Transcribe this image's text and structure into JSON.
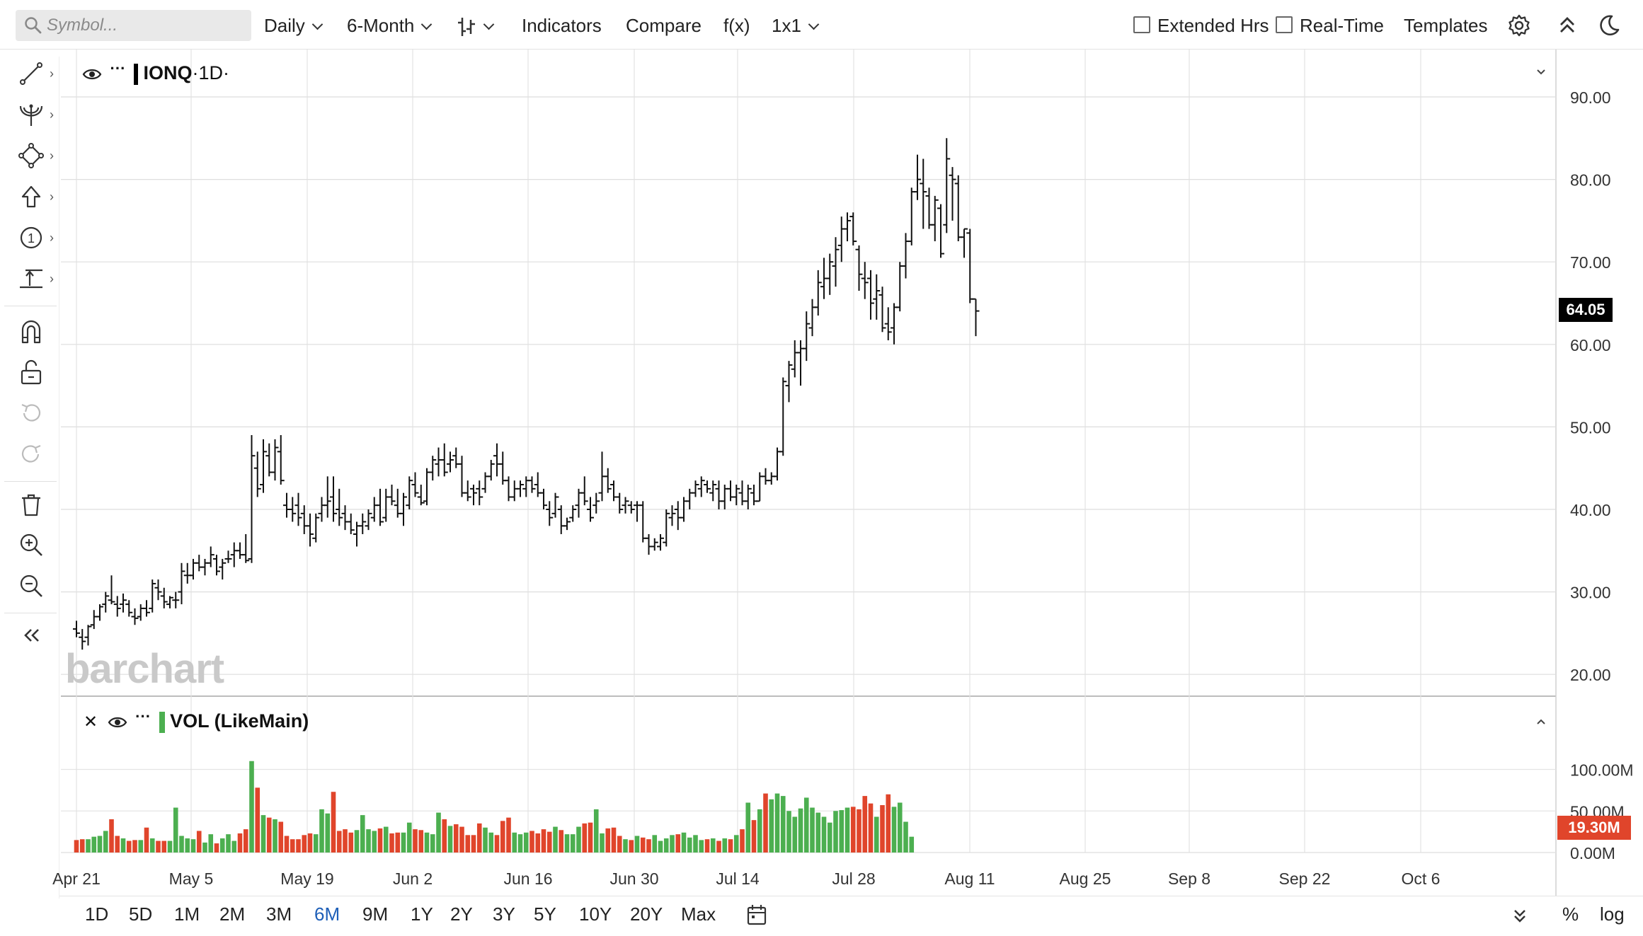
{
  "toolbar": {
    "search_placeholder": "Symbol...",
    "interval": "Daily",
    "range": "6-Month",
    "indicators": "Indicators",
    "compare": "Compare",
    "fx": "f(x)",
    "layout": "1x1",
    "extended_hrs": "Extended Hrs",
    "real_time": "Real-Time",
    "templates": "Templates"
  },
  "main_pane": {
    "symbol": "IONQ",
    "period": "·1D·",
    "last_price": "64.05"
  },
  "volume_pane": {
    "label": "VOL (LikeMain)",
    "last_volume": "19.30M"
  },
  "watermark": "barchart",
  "range_buttons": [
    "1D",
    "5D",
    "1M",
    "2M",
    "3M",
    "6M",
    "9M",
    "1Y",
    "2Y",
    "3Y",
    "5Y",
    "10Y",
    "20Y",
    "Max"
  ],
  "active_range": "6M",
  "bottom_right": {
    "percent": "%",
    "log": "log"
  },
  "colors": {
    "up_volume": "#4caf50",
    "down_volume": "#e0452b",
    "price_flag": "#000000",
    "volume_flag": "#e0452b",
    "active_range": "#1e5fb8"
  },
  "chart_data": {
    "type": "ohlc-bar",
    "price_axis": {
      "ticks": [
        "90.00",
        "80.00",
        "70.00",
        "60.00",
        "50.00",
        "40.00",
        "30.00",
        "20.00"
      ],
      "range": [
        17.5,
        94
      ]
    },
    "volume_axis": {
      "ticks": [
        "100.00M",
        "50.00M",
        "0.00M"
      ],
      "range": [
        0,
        110
      ]
    },
    "x_tick_labels": [
      "Apr 21",
      "May 5",
      "May 19",
      "Jun 2",
      "Jun 16",
      "Jun 30",
      "Jul 14",
      "Jul 28",
      "Aug 11",
      "Aug 25",
      "Sep 8",
      "Sep 22",
      "Oct 6"
    ],
    "ohlc": [
      [
        25.5,
        26.5,
        24.5,
        25.0
      ],
      [
        24.5,
        25.5,
        23.0,
        24.0
      ],
      [
        24.5,
        26.0,
        23.5,
        25.8
      ],
      [
        26.0,
        27.8,
        25.5,
        27.0
      ],
      [
        27.0,
        28.5,
        26.5,
        28.2
      ],
      [
        28.5,
        30.0,
        27.5,
        29.5
      ],
      [
        29.0,
        32.0,
        28.5,
        28.8
      ],
      [
        28.5,
        29.5,
        27.0,
        28.0
      ],
      [
        28.5,
        29.8,
        27.5,
        29.0
      ],
      [
        28.5,
        29.0,
        27.0,
        27.5
      ],
      [
        27.0,
        28.0,
        26.0,
        26.8
      ],
      [
        27.0,
        28.5,
        26.5,
        28.0
      ],
      [
        28.0,
        29.0,
        27.0,
        27.5
      ],
      [
        28.0,
        31.5,
        27.5,
        31.0
      ],
      [
        30.5,
        31.5,
        29.0,
        30.0
      ],
      [
        29.5,
        30.5,
        28.0,
        28.8
      ],
      [
        28.5,
        29.5,
        28.0,
        29.3
      ],
      [
        29.0,
        30.0,
        28.0,
        29.0
      ],
      [
        30.0,
        33.5,
        28.5,
        32.5
      ],
      [
        32.0,
        33.5,
        31.0,
        32.0
      ],
      [
        32.0,
        34.0,
        31.5,
        33.5
      ],
      [
        33.5,
        34.5,
        32.5,
        33.0
      ],
      [
        33.0,
        34.0,
        32.0,
        33.5
      ],
      [
        33.5,
        35.5,
        33.0,
        34.5
      ],
      [
        34.0,
        34.5,
        32.0,
        32.5
      ],
      [
        33.0,
        34.0,
        31.5,
        33.5
      ],
      [
        34.0,
        35.0,
        33.5,
        34.0
      ],
      [
        34.5,
        36.0,
        33.0,
        35.0
      ],
      [
        35.0,
        36.0,
        34.0,
        34.5
      ],
      [
        34.5,
        37.0,
        33.5,
        33.8
      ],
      [
        34.0,
        49.0,
        33.5,
        46.5
      ],
      [
        45.0,
        47.0,
        41.5,
        42.5
      ],
      [
        43.0,
        48.5,
        42.0,
        47.0
      ],
      [
        46.5,
        48.0,
        44.0,
        44.5
      ],
      [
        44.5,
        48.5,
        43.5,
        47.5
      ],
      [
        47.0,
        49.0,
        43.0,
        43.5
      ],
      [
        40.5,
        42.0,
        39.0,
        40.0
      ],
      [
        40.0,
        41.5,
        38.5,
        39.5
      ],
      [
        40.5,
        42.0,
        38.0,
        39.0
      ],
      [
        39.5,
        40.5,
        37.0,
        38.0
      ],
      [
        38.0,
        39.5,
        35.5,
        37.0
      ],
      [
        36.5,
        39.5,
        36.0,
        39.0
      ],
      [
        39.5,
        41.5,
        38.5,
        40.5
      ],
      [
        40.5,
        44.0,
        39.0,
        41.0
      ],
      [
        41.5,
        44.0,
        38.5,
        39.5
      ],
      [
        40.0,
        42.5,
        38.0,
        39.0
      ],
      [
        39.5,
        40.5,
        37.5,
        38.5
      ],
      [
        38.5,
        39.5,
        37.0,
        37.5
      ],
      [
        37.0,
        38.5,
        35.5,
        38.0
      ],
      [
        38.0,
        39.5,
        37.0,
        38.5
      ],
      [
        38.0,
        40.0,
        37.5,
        39.5
      ],
      [
        39.0,
        41.5,
        38.5,
        40.5
      ],
      [
        40.5,
        42.5,
        38.0,
        38.5
      ],
      [
        39.0,
        42.5,
        38.5,
        41.5
      ],
      [
        41.5,
        43.0,
        40.5,
        41.0
      ],
      [
        40.5,
        42.5,
        39.0,
        39.5
      ],
      [
        39.5,
        42.0,
        38.0,
        41.5
      ],
      [
        40.5,
        44.0,
        40.0,
        43.5
      ],
      [
        43.0,
        44.5,
        41.5,
        42.0
      ],
      [
        41.5,
        43.0,
        40.5,
        40.8
      ],
      [
        41.0,
        45.0,
        40.5,
        44.5
      ],
      [
        44.5,
        46.5,
        43.5,
        46.0
      ],
      [
        45.5,
        47.5,
        44.0,
        46.0
      ],
      [
        46.0,
        48.0,
        44.0,
        44.5
      ],
      [
        45.5,
        47.0,
        44.5,
        46.0
      ],
      [
        46.5,
        47.5,
        45.0,
        45.5
      ],
      [
        45.5,
        46.5,
        41.5,
        42.0
      ],
      [
        42.0,
        43.5,
        41.0,
        41.5
      ],
      [
        42.5,
        43.0,
        40.5,
        42.0
      ],
      [
        42.5,
        43.5,
        40.5,
        41.5
      ],
      [
        42.5,
        44.5,
        42.0,
        44.0
      ],
      [
        44.0,
        46.0,
        43.5,
        45.5
      ],
      [
        46.5,
        48.0,
        44.0,
        45.5
      ],
      [
        45.5,
        47.0,
        43.0,
        43.5
      ],
      [
        43.5,
        44.0,
        41.0,
        41.5
      ],
      [
        41.5,
        43.5,
        41.0,
        42.5
      ],
      [
        42.5,
        43.5,
        41.5,
        43.0
      ],
      [
        42.5,
        44.0,
        41.5,
        43.5
      ],
      [
        43.5,
        44.0,
        42.0,
        42.5
      ],
      [
        43.0,
        44.5,
        41.5,
        42.0
      ],
      [
        42.0,
        42.5,
        40.0,
        40.5
      ],
      [
        40.0,
        41.0,
        38.0,
        39.0
      ],
      [
        39.5,
        42.0,
        39.0,
        41.5
      ],
      [
        40.0,
        40.5,
        37.0,
        38.0
      ],
      [
        38.0,
        39.0,
        37.5,
        38.5
      ],
      [
        39.0,
        40.5,
        38.5,
        40.0
      ],
      [
        40.5,
        42.5,
        39.0,
        42.0
      ],
      [
        42.0,
        44.0,
        40.5,
        41.0
      ],
      [
        40.0,
        41.5,
        38.5,
        39.0
      ],
      [
        40.5,
        42.0,
        39.5,
        41.0
      ],
      [
        42.0,
        47.0,
        41.0,
        44.0
      ],
      [
        44.0,
        45.0,
        42.0,
        42.5
      ],
      [
        43.0,
        43.5,
        41.0,
        41.5
      ],
      [
        41.5,
        42.0,
        39.5,
        40.0
      ],
      [
        40.5,
        41.5,
        39.5,
        41.0
      ],
      [
        40.5,
        41.0,
        39.5,
        40.0
      ],
      [
        40.5,
        41.0,
        38.5,
        40.5
      ],
      [
        40.5,
        41.0,
        36.0,
        36.5
      ],
      [
        36.5,
        37.0,
        34.5,
        35.5
      ],
      [
        35.5,
        36.5,
        35.0,
        36.0
      ],
      [
        35.5,
        37.0,
        35.0,
        36.5
      ],
      [
        36.0,
        40.0,
        35.5,
        39.5
      ],
      [
        39.0,
        40.5,
        38.0,
        39.5
      ],
      [
        40.0,
        41.0,
        37.5,
        39.0
      ],
      [
        39.0,
        41.5,
        38.5,
        41.0
      ],
      [
        41.0,
        42.5,
        40.0,
        42.0
      ],
      [
        42.0,
        43.5,
        41.5,
        43.0
      ],
      [
        42.5,
        44.0,
        41.5,
        43.5
      ],
      [
        43.0,
        43.5,
        42.0,
        42.5
      ],
      [
        42.0,
        43.5,
        41.0,
        43.0
      ],
      [
        42.5,
        43.5,
        40.0,
        41.0
      ],
      [
        41.0,
        43.0,
        40.0,
        42.5
      ],
      [
        42.5,
        43.5,
        41.0,
        41.5
      ],
      [
        41.5,
        43.0,
        40.5,
        42.5
      ],
      [
        42.0,
        43.5,
        40.5,
        41.0
      ],
      [
        41.0,
        43.0,
        40.0,
        42.5
      ],
      [
        42.0,
        43.0,
        40.5,
        41.0
      ],
      [
        41.0,
        44.5,
        41.0,
        44.0
      ],
      [
        44.0,
        45.0,
        43.0,
        43.5
      ],
      [
        43.5,
        44.5,
        43.0,
        44.0
      ],
      [
        44.0,
        47.5,
        43.5,
        47.0
      ],
      [
        47.0,
        56.0,
        46.5,
        55.5
      ],
      [
        55.0,
        58.0,
        53.0,
        57.5
      ],
      [
        57.0,
        60.5,
        56.0,
        59.0
      ],
      [
        59.0,
        60.5,
        55.0,
        59.5
      ],
      [
        59.5,
        64.0,
        58.0,
        62.5
      ],
      [
        62.0,
        65.5,
        61.0,
        64.5
      ],
      [
        64.5,
        69.0,
        63.5,
        67.5
      ],
      [
        67.0,
        70.5,
        65.5,
        68.0
      ],
      [
        68.0,
        71.0,
        66.0,
        70.0
      ],
      [
        69.5,
        73.0,
        67.0,
        71.5
      ],
      [
        72.0,
        75.5,
        70.0,
        74.0
      ],
      [
        74.0,
        76.0,
        72.5,
        75.0
      ],
      [
        75.5,
        76.0,
        72.0,
        72.5
      ],
      [
        71.5,
        72.0,
        66.5,
        68.5
      ],
      [
        68.0,
        70.0,
        65.5,
        67.5
      ],
      [
        68.0,
        69.0,
        63.0,
        65.0
      ],
      [
        65.5,
        68.5,
        63.0,
        66.5
      ],
      [
        66.0,
        67.0,
        61.5,
        62.0
      ],
      [
        62.5,
        64.5,
        60.5,
        61.5
      ],
      [
        62.0,
        65.0,
        60.0,
        64.5
      ],
      [
        64.5,
        70.0,
        64.0,
        69.5
      ],
      [
        69.5,
        73.5,
        68.0,
        72.5
      ],
      [
        72.5,
        79.0,
        72.0,
        78.5
      ],
      [
        78.5,
        83.0,
        77.5,
        80.0
      ],
      [
        79.5,
        82.5,
        74.0,
        78.5
      ],
      [
        78.0,
        79.0,
        74.0,
        74.5
      ],
      [
        74.5,
        78.0,
        72.5,
        77.5
      ],
      [
        76.5,
        77.0,
        70.5,
        71.0
      ],
      [
        74.5,
        85.0,
        73.5,
        82.5
      ],
      [
        80.5,
        81.5,
        75.0,
        80.0
      ],
      [
        79.5,
        80.5,
        72.5,
        73.0
      ],
      [
        73.0,
        74.0,
        70.5,
        74.0
      ],
      [
        73.5,
        74.0,
        65.0,
        65.5
      ],
      [
        65.5,
        65.5,
        61.0,
        64.05
      ]
    ],
    "volume_millions": [
      15,
      16,
      16,
      19,
      20,
      26,
      40,
      20,
      17,
      14,
      15,
      15,
      30,
      17,
      14,
      14,
      14,
      54,
      20,
      17,
      16,
      26,
      12,
      22,
      11,
      17,
      22,
      14,
      23,
      28,
      110,
      78,
      45,
      42,
      40,
      37,
      20,
      16,
      16,
      21,
      23,
      22,
      52,
      47,
      73,
      26,
      28,
      24,
      27,
      45,
      28,
      26,
      29,
      31,
      23,
      24,
      24,
      36,
      28,
      27,
      24,
      22,
      48,
      40,
      32,
      34,
      31,
      21,
      21,
      35,
      30,
      24,
      21,
      38,
      42,
      24,
      22,
      24,
      26,
      23,
      28,
      25,
      31,
      27,
      22,
      22,
      31,
      35,
      36,
      52,
      23,
      29,
      30,
      20,
      16,
      15,
      20,
      18,
      16,
      21,
      14,
      17,
      21,
      22,
      24,
      18,
      21,
      15,
      16,
      17,
      14,
      17,
      16,
      21,
      28,
      60,
      39,
      52,
      71,
      64,
      71,
      68,
      50,
      43,
      53,
      66,
      54,
      48,
      43,
      36,
      50,
      51,
      54,
      55,
      52,
      68,
      59,
      43,
      57,
      70,
      55,
      60,
      37,
      19
    ]
  }
}
